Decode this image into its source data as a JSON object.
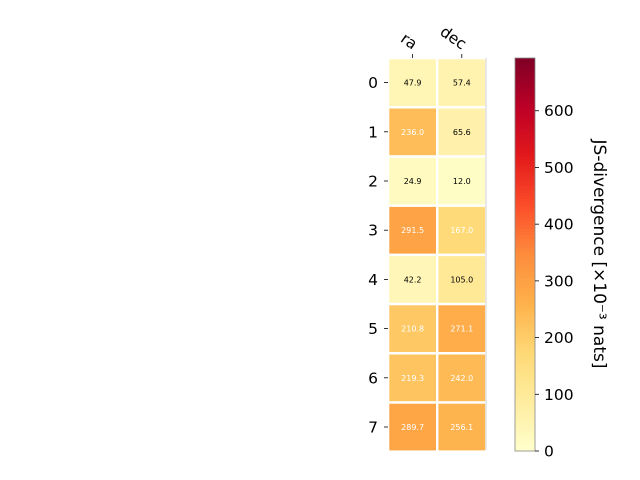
{
  "chart_data": {
    "type": "heatmap",
    "x_categories": [
      "ra",
      "dec"
    ],
    "y_categories": [
      "0",
      "1",
      "2",
      "3",
      "4",
      "5",
      "6",
      "7"
    ],
    "values": [
      [
        47.9,
        57.4
      ],
      [
        236.0,
        65.6
      ],
      [
        24.9,
        12.0
      ],
      [
        291.5,
        167.0
      ],
      [
        42.2,
        105.0
      ],
      [
        210.8,
        271.1
      ],
      [
        219.3,
        242.0
      ],
      [
        289.7,
        256.1
      ]
    ],
    "value_labels": [
      [
        "47.9",
        "57.4"
      ],
      [
        "236.0",
        "65.6"
      ],
      [
        "24.9",
        "12.0"
      ],
      [
        "291.5",
        "167.0"
      ],
      [
        "42.2",
        "105.0"
      ],
      [
        "210.8",
        "271.1"
      ],
      [
        "219.3",
        "242.0"
      ],
      [
        "289.7",
        "256.1"
      ]
    ],
    "colorbar": {
      "label": "JS-divergence [×10⁻³ nats]",
      "range": [
        0,
        693
      ],
      "ticks": [
        0,
        100,
        200,
        300,
        400,
        500,
        600
      ],
      "colormap": "YlOrRd"
    }
  }
}
